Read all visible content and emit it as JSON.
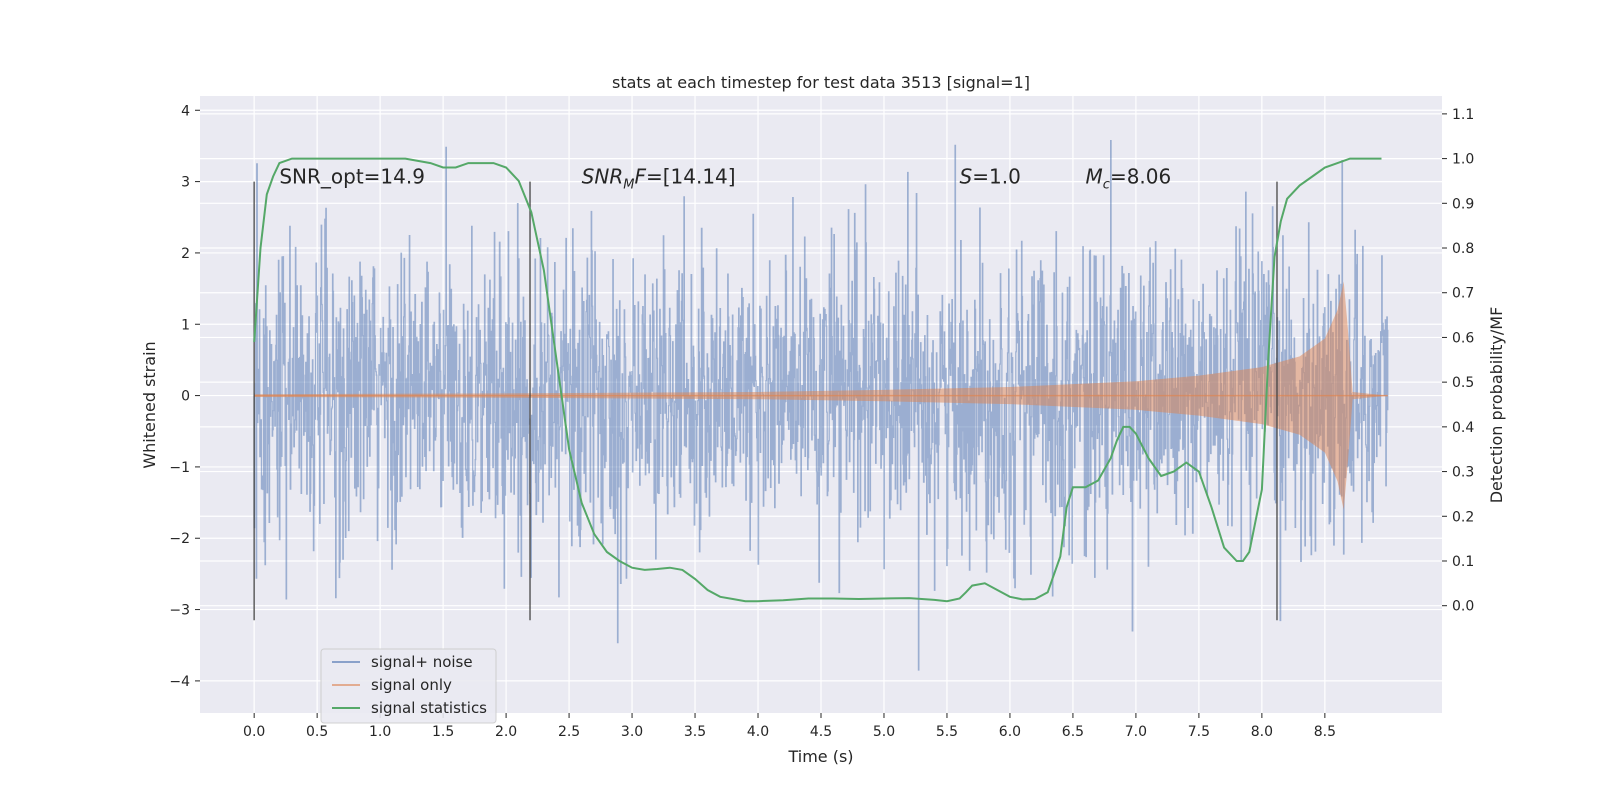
{
  "chart_data": {
    "type": "line",
    "title": "stats at each timestep for test data 3513 [signal=1]",
    "xlabel": "Time (s)",
    "ylabel": "Whitened strain",
    "ylabel_right": "Detection probability/MF",
    "xlim": [
      -0.43,
      9.43
    ],
    "ylim": [
      -4.45,
      4.2
    ],
    "ylim_right": [
      -0.24,
      1.14
    ],
    "x_ticks": [
      "0.0",
      "0.5",
      "1.0",
      "1.5",
      "2.0",
      "2.5",
      "3.0",
      "3.5",
      "4.0",
      "4.5",
      "5.0",
      "5.5",
      "6.0",
      "6.5",
      "7.0",
      "7.5",
      "8.0",
      "8.5"
    ],
    "y_ticks": [
      "4",
      "3",
      "2",
      "1",
      "0",
      "−1",
      "−2",
      "−3",
      "−4"
    ],
    "y_right_ticks": [
      "1.1",
      "1.0",
      "0.9",
      "0.8",
      "0.7",
      "0.6",
      "0.5",
      "0.4",
      "0.3",
      "0.2",
      "0.1",
      "0.0"
    ],
    "grid": true,
    "legend_position": "lower-left",
    "annotations": [
      {
        "text": "SNR_opt=14.9",
        "x": 0.2,
        "y": 3.0
      },
      {
        "text": "SNR_MF=[14.14]",
        "x": 2.6,
        "y": 3.0
      },
      {
        "text": "S=1.0",
        "x": 5.6,
        "y": 3.0
      },
      {
        "text": "M_c=8.06",
        "x": 6.6,
        "y": 3.0
      }
    ],
    "vertical_markers": [
      0.0,
      2.19,
      8.12
    ],
    "series": [
      {
        "name": "signal+ noise",
        "color": "#4c72b0",
        "description": "whitened noise plus signal, fluctuating roughly between -3.5 and 3.8 over 0 to 9 s",
        "x_range": [
          0.0,
          9.0
        ],
        "typical_range": [
          -2.5,
          2.5
        ]
      },
      {
        "name": "signal only",
        "color": "#dd8452",
        "description": "chirp signal, amplitude growing toward merger near 8.6 s",
        "envelope_x": [
          0.0,
          2.0,
          4.0,
          5.0,
          6.0,
          7.0,
          7.5,
          8.0,
          8.3,
          8.5,
          8.6,
          8.65,
          8.68,
          8.72,
          9.0
        ],
        "envelope_y": [
          0.02,
          0.03,
          0.05,
          0.08,
          0.12,
          0.2,
          0.28,
          0.4,
          0.55,
          0.8,
          1.2,
          1.6,
          1.0,
          0.05,
          0.0
        ]
      },
      {
        "name": "signal statistics",
        "color": "#55a868",
        "axis": "right",
        "x": [
          0.0,
          0.05,
          0.1,
          0.15,
          0.2,
          0.3,
          0.5,
          1.0,
          1.2,
          1.4,
          1.5,
          1.6,
          1.7,
          1.8,
          1.9,
          2.0,
          2.1,
          2.2,
          2.3,
          2.4,
          2.5,
          2.6,
          2.7,
          2.8,
          2.9,
          3.0,
          3.1,
          3.2,
          3.3,
          3.4,
          3.5,
          3.6,
          3.7,
          3.8,
          3.9,
          4.0,
          4.2,
          4.4,
          4.6,
          4.8,
          5.0,
          5.2,
          5.4,
          5.5,
          5.6,
          5.65,
          5.7,
          5.8,
          5.9,
          6.0,
          6.1,
          6.2,
          6.3,
          6.4,
          6.45,
          6.5,
          6.6,
          6.7,
          6.8,
          6.85,
          6.9,
          6.95,
          7.0,
          7.1,
          7.2,
          7.3,
          7.35,
          7.4,
          7.5,
          7.6,
          7.7,
          7.8,
          7.85,
          7.9,
          8.0,
          8.05,
          8.1,
          8.15,
          8.2,
          8.3,
          8.4,
          8.5,
          8.6,
          8.7,
          8.8,
          8.9,
          8.95
        ],
        "values": [
          0.59,
          0.8,
          0.92,
          0.96,
          0.99,
          1.0,
          1.0,
          1.0,
          1.0,
          0.99,
          0.98,
          0.98,
          0.99,
          0.99,
          0.99,
          0.98,
          0.95,
          0.88,
          0.75,
          0.55,
          0.35,
          0.23,
          0.16,
          0.12,
          0.1,
          0.085,
          0.08,
          0.082,
          0.085,
          0.08,
          0.06,
          0.035,
          0.02,
          0.015,
          0.01,
          0.01,
          0.012,
          0.016,
          0.016,
          0.015,
          0.016,
          0.017,
          0.013,
          0.01,
          0.016,
          0.03,
          0.045,
          0.05,
          0.035,
          0.02,
          0.014,
          0.015,
          0.03,
          0.11,
          0.22,
          0.265,
          0.265,
          0.28,
          0.33,
          0.37,
          0.4,
          0.4,
          0.385,
          0.33,
          0.29,
          0.3,
          0.31,
          0.32,
          0.3,
          0.22,
          0.13,
          0.1,
          0.1,
          0.12,
          0.26,
          0.55,
          0.78,
          0.86,
          0.91,
          0.94,
          0.96,
          0.98,
          0.99,
          1.0,
          1.0,
          1.0,
          1.0
        ]
      }
    ]
  }
}
